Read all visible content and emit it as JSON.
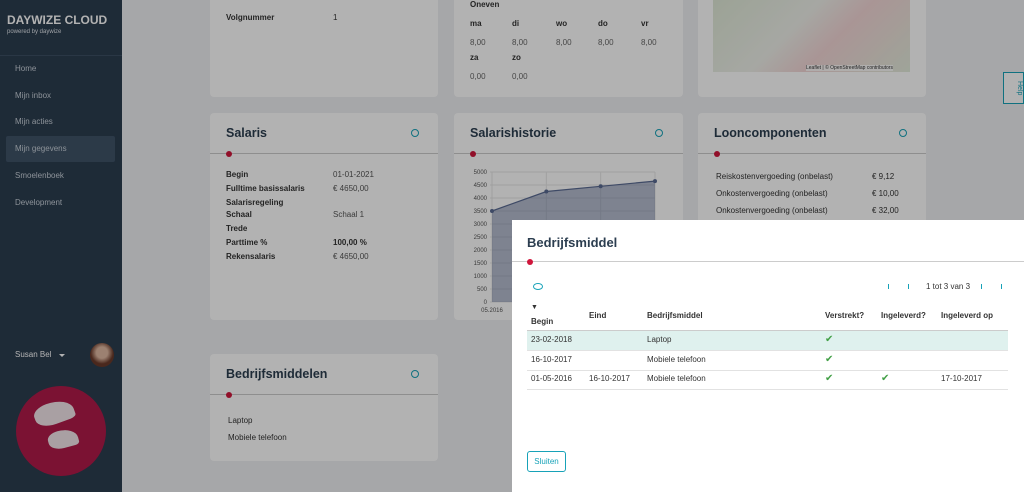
{
  "sidebar": {
    "brand": "DAYWIZE CLOUD",
    "tagline": "powered by daywize",
    "nav": [
      "Home",
      "Mijn inbox",
      "Mijn acties",
      "Mijn gegevens",
      "Smoelenboek",
      "Development"
    ],
    "active": 3,
    "user": "Susan Bel"
  },
  "card_top_left": {
    "label": "Volgnummer",
    "value": "1"
  },
  "card_schedule": {
    "title": "Oneven",
    "days": [
      "ma",
      "di",
      "wo",
      "do",
      "vr"
    ],
    "day_values": [
      "8,00",
      "8,00",
      "8,00",
      "8,00",
      "8,00"
    ],
    "weekend": [
      "za",
      "zo"
    ],
    "weekend_values": [
      "0,00",
      "0,00"
    ]
  },
  "map": {
    "attribution": "Leaflet | © OpenStreetMap contributors"
  },
  "help": "Help",
  "salaris": {
    "title": "Salaris",
    "rows": [
      [
        "Begin",
        "01-01-2021"
      ],
      [
        "Fulltime basissalaris",
        "€ 4650,00"
      ],
      [
        "Salarisregeling",
        null
      ],
      [
        "Schaal",
        "Schaal 1"
      ],
      [
        "Trede",
        null
      ],
      [
        "Parttime %",
        "100,00 %"
      ],
      [
        "Rekensalaris",
        "€ 4650,00"
      ]
    ]
  },
  "salarishistorie": {
    "title": "Salarishistorie",
    "ylim": [
      0,
      5000
    ],
    "yticks": [
      0,
      500,
      1000,
      1500,
      2000,
      2500,
      3000,
      3500,
      4000,
      4500,
      5000
    ],
    "x_label": "05.2016",
    "values": [
      3500,
      4250,
      4450,
      4650
    ],
    "color": "#5a6a92"
  },
  "looncomponenten": {
    "title": "Looncomponenten",
    "rows": [
      [
        "Reiskostenvergoeding (onbelast)",
        "€ 9,12"
      ],
      [
        "Onkostenvergoeding (onbelast)",
        "€ 10,00"
      ],
      [
        "Onkostenvergoeding (onbelast)",
        "€ 32,00"
      ]
    ]
  },
  "bedrijfsmiddelen": {
    "title": "Bedrijfsmiddelen",
    "items": [
      "Laptop",
      "Mobiele telefoon"
    ]
  },
  "modal": {
    "title": "Bedrijfsmiddel",
    "pager": "1 tot 3 van 3",
    "sort_indicator": "▼",
    "headers": [
      "Begin",
      "Eind",
      "Bedrijfsmiddel",
      "Verstrekt?",
      "Ingeleverd?",
      "Ingeleverd op"
    ],
    "rows": [
      [
        "23-02-2018",
        null,
        "Laptop",
        true,
        false,
        null
      ],
      [
        "16-10-2017",
        null,
        "Mobiele telefoon",
        true,
        false,
        null
      ],
      [
        "01-05-2016",
        "16-10-2017",
        "Mobiele telefoon",
        true,
        true,
        "17-10-2017"
      ]
    ],
    "button": "Sluiten"
  }
}
